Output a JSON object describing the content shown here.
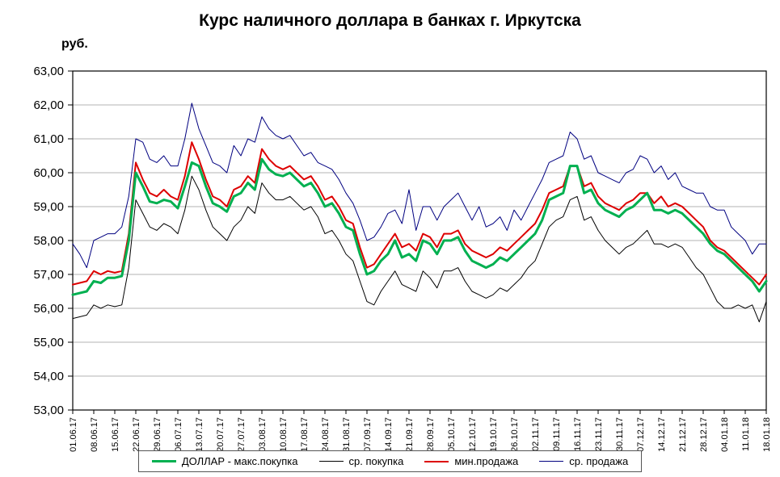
{
  "title": "Курс наличного доллара в банках г. Иркутска",
  "y_unit_label": "руб.",
  "chart_data": {
    "type": "line",
    "title": "Курс наличного доллара в банках г. Иркутска",
    "ylabel": "руб.",
    "xlabel": "",
    "grid": true,
    "legend_position": "bottom",
    "y_axis": {
      "min": 53,
      "max": 63,
      "step": 1
    },
    "y_tick_labels": [
      "53,00",
      "54,00",
      "55,00",
      "56,00",
      "57,00",
      "58,00",
      "59,00",
      "60,00",
      "61,00",
      "62,00",
      "63,00"
    ],
    "categories": [
      "01.06.17",
      "08.06.17",
      "15.06.17",
      "22.06.17",
      "29.06.17",
      "06.07.17",
      "13.07.17",
      "20.07.17",
      "27.07.17",
      "03.08.17",
      "10.08.17",
      "17.08.17",
      "24.08.17",
      "31.08.17",
      "07.09.17",
      "14.09.17",
      "21.09.17",
      "28.09.17",
      "05.10.17",
      "12.10.17",
      "19.10.17",
      "26.10.17",
      "02.11.17",
      "09.11.17",
      "16.11.17",
      "23.11.17",
      "30.11.17",
      "07.12.17",
      "14.12.17",
      "21.12.17",
      "28.12.17",
      "04.01.18",
      "11.01.18",
      "18.01.18"
    ],
    "points_per_category": 3,
    "series": [
      {
        "name": "ДОЛЛАР - макс.покупка",
        "color": "#00b050",
        "width": 3,
        "values": [
          56.4,
          56.45,
          56.5,
          56.8,
          56.75,
          56.9,
          56.9,
          56.95,
          58.0,
          60.0,
          59.6,
          59.15,
          59.1,
          59.2,
          59.15,
          58.95,
          59.6,
          60.3,
          60.2,
          59.6,
          59.1,
          59.0,
          58.85,
          59.3,
          59.4,
          59.7,
          59.5,
          60.4,
          60.1,
          59.95,
          59.9,
          60.0,
          59.8,
          59.6,
          59.7,
          59.4,
          59.0,
          59.1,
          58.8,
          58.4,
          58.3,
          57.6,
          57.0,
          57.1,
          57.4,
          57.6,
          58.0,
          57.5,
          57.6,
          57.4,
          58.0,
          57.9,
          57.6,
          58.0,
          58.0,
          58.1,
          57.7,
          57.4,
          57.3,
          57.2,
          57.3,
          57.5,
          57.4,
          57.6,
          57.8,
          58.0,
          58.2,
          58.6,
          59.2,
          59.3,
          59.4,
          60.2,
          60.2,
          59.4,
          59.5,
          59.1,
          58.9,
          58.8,
          58.7,
          58.9,
          59.0,
          59.2,
          59.4,
          58.9,
          58.9,
          58.8,
          58.9,
          58.8,
          58.6,
          58.4,
          58.2,
          57.9,
          57.7,
          57.6,
          57.4,
          57.2,
          57.0,
          56.8,
          56.5,
          56.8
        ]
      },
      {
        "name": "ср. покупка",
        "color": "#000000",
        "width": 1,
        "values": [
          55.7,
          55.75,
          55.8,
          56.1,
          56.0,
          56.1,
          56.05,
          56.1,
          57.2,
          59.2,
          58.8,
          58.4,
          58.3,
          58.5,
          58.4,
          58.2,
          58.9,
          59.9,
          59.5,
          58.9,
          58.4,
          58.2,
          58.0,
          58.4,
          58.6,
          59.0,
          58.8,
          59.7,
          59.4,
          59.2,
          59.2,
          59.3,
          59.1,
          58.9,
          59.0,
          58.7,
          58.2,
          58.3,
          58.0,
          57.6,
          57.4,
          56.8,
          56.2,
          56.1,
          56.5,
          56.8,
          57.1,
          56.7,
          56.6,
          56.5,
          57.1,
          56.9,
          56.6,
          57.1,
          57.1,
          57.2,
          56.8,
          56.5,
          56.4,
          56.3,
          56.4,
          56.6,
          56.5,
          56.7,
          56.9,
          57.2,
          57.4,
          57.9,
          58.4,
          58.6,
          58.7,
          59.2,
          59.3,
          58.6,
          58.7,
          58.3,
          58.0,
          57.8,
          57.6,
          57.8,
          57.9,
          58.1,
          58.3,
          57.9,
          57.9,
          57.8,
          57.9,
          57.8,
          57.5,
          57.2,
          57.0,
          56.6,
          56.2,
          56.0,
          56.0,
          56.1,
          56.0,
          56.1,
          55.6,
          56.2
        ]
      },
      {
        "name": "мин.продажа",
        "color": "#dd0000",
        "width": 2,
        "values": [
          56.7,
          56.75,
          56.8,
          57.1,
          57.0,
          57.1,
          57.05,
          57.1,
          58.2,
          60.3,
          59.8,
          59.4,
          59.3,
          59.5,
          59.3,
          59.2,
          59.9,
          60.9,
          60.4,
          59.8,
          59.3,
          59.2,
          59.0,
          59.5,
          59.6,
          59.9,
          59.7,
          60.7,
          60.4,
          60.2,
          60.1,
          60.2,
          60.0,
          59.8,
          59.9,
          59.6,
          59.2,
          59.3,
          59.0,
          58.6,
          58.5,
          57.8,
          57.2,
          57.3,
          57.6,
          57.9,
          58.2,
          57.8,
          57.9,
          57.7,
          58.2,
          58.1,
          57.8,
          58.2,
          58.2,
          58.3,
          57.9,
          57.7,
          57.6,
          57.5,
          57.6,
          57.8,
          57.7,
          57.9,
          58.1,
          58.3,
          58.5,
          58.9,
          59.4,
          59.5,
          59.6,
          60.2,
          60.2,
          59.6,
          59.7,
          59.3,
          59.1,
          59.0,
          58.9,
          59.1,
          59.2,
          59.4,
          59.4,
          59.1,
          59.3,
          59.0,
          59.1,
          59.0,
          58.8,
          58.6,
          58.4,
          58.0,
          57.8,
          57.7,
          57.5,
          57.3,
          57.1,
          56.9,
          56.7,
          57.0
        ]
      },
      {
        "name": "ср. продажа",
        "color": "#000080",
        "width": 1,
        "values": [
          57.9,
          57.6,
          57.2,
          58.0,
          58.1,
          58.2,
          58.2,
          58.4,
          59.3,
          61.0,
          60.9,
          60.4,
          60.3,
          60.5,
          60.2,
          60.2,
          61.0,
          62.05,
          61.3,
          60.8,
          60.3,
          60.2,
          60.0,
          60.8,
          60.5,
          61.0,
          60.9,
          61.65,
          61.3,
          61.1,
          61.0,
          61.1,
          60.8,
          60.5,
          60.6,
          60.3,
          60.2,
          60.1,
          59.8,
          59.4,
          59.1,
          58.6,
          58.0,
          58.1,
          58.4,
          58.8,
          58.9,
          58.5,
          59.5,
          58.3,
          59.0,
          59.0,
          58.6,
          59.0,
          59.2,
          59.4,
          59.0,
          58.6,
          59.0,
          58.4,
          58.5,
          58.7,
          58.3,
          58.9,
          58.6,
          59.0,
          59.4,
          59.8,
          60.3,
          60.4,
          60.5,
          61.2,
          61.0,
          60.4,
          60.5,
          60.0,
          59.9,
          59.8,
          59.7,
          60.0,
          60.1,
          60.5,
          60.4,
          60.0,
          60.2,
          59.8,
          60.0,
          59.6,
          59.5,
          59.4,
          59.4,
          59.0,
          58.9,
          58.9,
          58.4,
          58.2,
          58.0,
          57.6,
          57.9,
          57.9
        ]
      }
    ]
  }
}
